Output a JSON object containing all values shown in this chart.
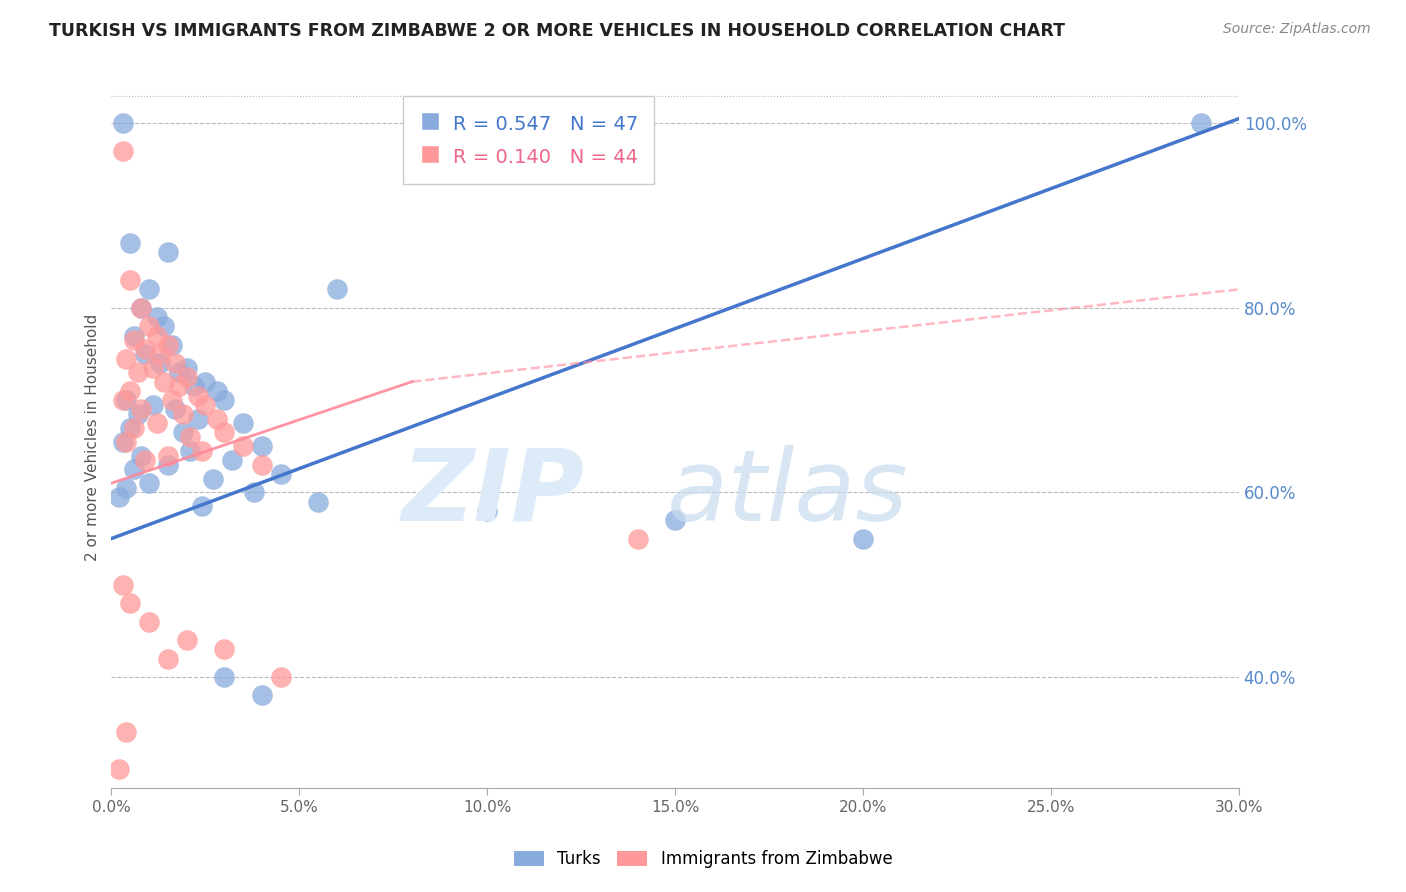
{
  "title": "TURKISH VS IMMIGRANTS FROM ZIMBABWE 2 OR MORE VEHICLES IN HOUSEHOLD CORRELATION CHART",
  "source": "Source: ZipAtlas.com",
  "ylabel": "2 or more Vehicles in Household",
  "xmin": 0.0,
  "xmax": 30.0,
  "ymin": 28.0,
  "ymax": 104.0,
  "yticks": [
    40.0,
    60.0,
    80.0,
    100.0
  ],
  "xticks": [
    0.0,
    5.0,
    10.0,
    15.0,
    20.0,
    25.0,
    30.0
  ],
  "blue_R": 0.547,
  "blue_N": 47,
  "pink_R": 0.14,
  "pink_N": 44,
  "blue_color": "#88AADD",
  "pink_color": "#FF9999",
  "blue_line_color": "#4477CC",
  "pink_line_color": "#FF8899",
  "legend_blue_label": "Turks",
  "legend_pink_label": "Immigrants from Zimbabwe",
  "blue_scatter": [
    [
      0.3,
      100.0
    ],
    [
      0.5,
      87.0
    ],
    [
      1.5,
      86.0
    ],
    [
      1.0,
      82.0
    ],
    [
      0.8,
      80.0
    ],
    [
      1.2,
      79.0
    ],
    [
      1.4,
      78.0
    ],
    [
      0.6,
      77.0
    ],
    [
      1.6,
      76.0
    ],
    [
      0.9,
      75.0
    ],
    [
      1.3,
      74.0
    ],
    [
      2.0,
      73.5
    ],
    [
      1.8,
      73.0
    ],
    [
      2.5,
      72.0
    ],
    [
      2.2,
      71.5
    ],
    [
      2.8,
      71.0
    ],
    [
      0.4,
      70.0
    ],
    [
      3.0,
      70.0
    ],
    [
      1.1,
      69.5
    ],
    [
      1.7,
      69.0
    ],
    [
      0.7,
      68.5
    ],
    [
      2.3,
      68.0
    ],
    [
      3.5,
      67.5
    ],
    [
      0.5,
      67.0
    ],
    [
      1.9,
      66.5
    ],
    [
      0.3,
      65.5
    ],
    [
      4.0,
      65.0
    ],
    [
      2.1,
      64.5
    ],
    [
      0.8,
      64.0
    ],
    [
      3.2,
      63.5
    ],
    [
      1.5,
      63.0
    ],
    [
      0.6,
      62.5
    ],
    [
      4.5,
      62.0
    ],
    [
      2.7,
      61.5
    ],
    [
      1.0,
      61.0
    ],
    [
      0.4,
      60.5
    ],
    [
      3.8,
      60.0
    ],
    [
      0.2,
      59.5
    ],
    [
      5.5,
      59.0
    ],
    [
      2.4,
      58.5
    ],
    [
      10.0,
      58.0
    ],
    [
      15.0,
      57.0
    ],
    [
      20.0,
      55.0
    ],
    [
      4.0,
      38.0
    ],
    [
      3.0,
      40.0
    ],
    [
      29.0,
      100.0
    ],
    [
      6.0,
      82.0
    ]
  ],
  "pink_scatter": [
    [
      0.3,
      97.0
    ],
    [
      0.5,
      83.0
    ],
    [
      0.8,
      80.0
    ],
    [
      1.0,
      78.0
    ],
    [
      1.2,
      77.0
    ],
    [
      0.6,
      76.5
    ],
    [
      1.5,
      76.0
    ],
    [
      0.9,
      75.5
    ],
    [
      1.3,
      75.0
    ],
    [
      0.4,
      74.5
    ],
    [
      1.7,
      74.0
    ],
    [
      1.1,
      73.5
    ],
    [
      0.7,
      73.0
    ],
    [
      2.0,
      72.5
    ],
    [
      1.4,
      72.0
    ],
    [
      1.8,
      71.5
    ],
    [
      0.5,
      71.0
    ],
    [
      2.3,
      70.5
    ],
    [
      1.6,
      70.0
    ],
    [
      0.3,
      70.0
    ],
    [
      2.5,
      69.5
    ],
    [
      0.8,
      69.0
    ],
    [
      1.9,
      68.5
    ],
    [
      2.8,
      68.0
    ],
    [
      1.2,
      67.5
    ],
    [
      0.6,
      67.0
    ],
    [
      3.0,
      66.5
    ],
    [
      2.1,
      66.0
    ],
    [
      0.4,
      65.5
    ],
    [
      3.5,
      65.0
    ],
    [
      2.4,
      64.5
    ],
    [
      1.5,
      64.0
    ],
    [
      0.9,
      63.5
    ],
    [
      4.0,
      63.0
    ],
    [
      0.3,
      50.0
    ],
    [
      0.5,
      48.0
    ],
    [
      1.0,
      46.0
    ],
    [
      2.0,
      44.0
    ],
    [
      3.0,
      43.0
    ],
    [
      1.5,
      42.0
    ],
    [
      14.0,
      55.0
    ],
    [
      4.5,
      40.0
    ],
    [
      0.4,
      34.0
    ],
    [
      0.2,
      30.0
    ]
  ],
  "blue_line_x0": 0.0,
  "blue_line_x1": 30.0,
  "blue_line_y0": 55.0,
  "blue_line_y1": 100.5,
  "pink_solid_x0": 0.0,
  "pink_solid_x1": 8.0,
  "pink_solid_y0": 61.0,
  "pink_solid_y1": 72.0,
  "pink_dash_x0": 8.0,
  "pink_dash_x1": 30.0,
  "pink_dash_y0": 72.0,
  "pink_dash_y1": 82.0
}
